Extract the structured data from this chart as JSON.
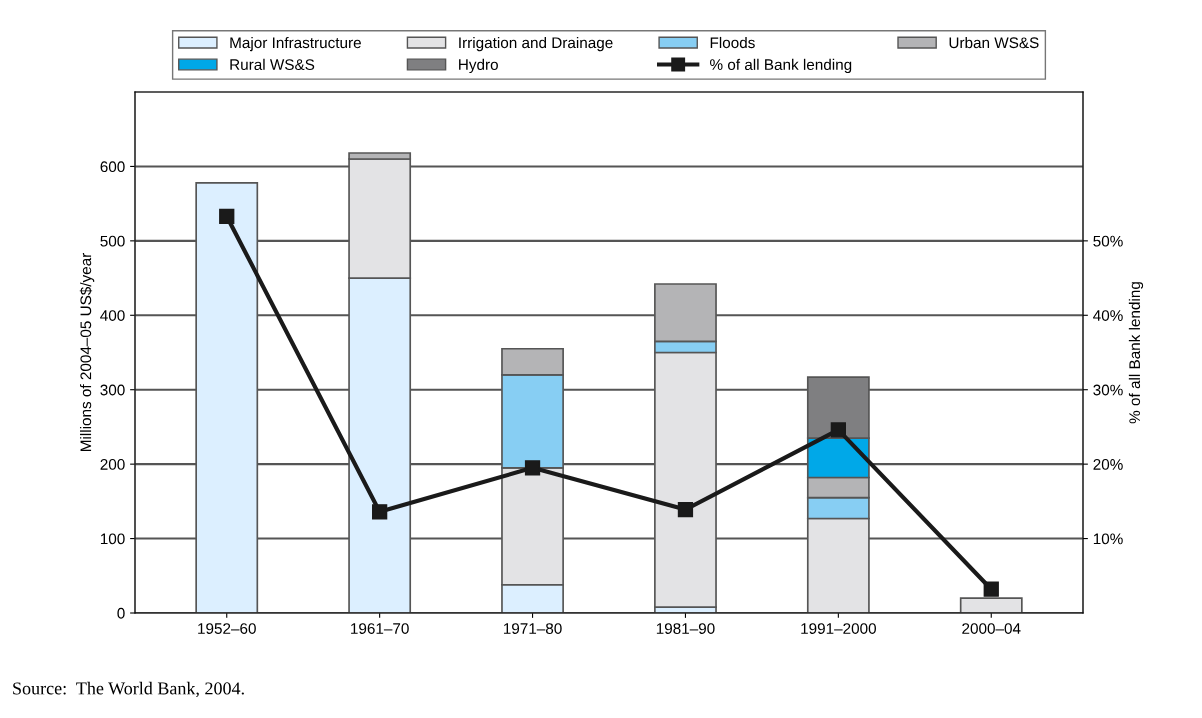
{
  "chart_data": {
    "type": "bar",
    "stacked": true,
    "categories": [
      "1952–60",
      "1961–70",
      "1971–80",
      "1981–90",
      "1991–2000",
      "2000–04"
    ],
    "series": [
      {
        "name": "Major Infrastructure",
        "color": "#dcefff",
        "values": [
          578,
          450,
          38,
          8,
          null,
          null
        ]
      },
      {
        "name": "Irrigation and Drainage",
        "color": "#e3e3e5",
        "values": [
          null,
          160,
          157,
          342,
          127,
          20
        ]
      },
      {
        "name": "Floods",
        "color": "#87cef3",
        "values": [
          null,
          null,
          125,
          15,
          28,
          null
        ]
      },
      {
        "name": "Urban WS&S",
        "color": "#b4b4b6",
        "values": [
          null,
          8,
          35,
          77,
          27,
          null
        ]
      },
      {
        "name": "Rural WS&S",
        "color": "#00a8e8",
        "values": [
          null,
          null,
          null,
          null,
          53,
          null
        ]
      },
      {
        "name": "Hydro",
        "color": "#7f7f81",
        "values": [
          null,
          null,
          null,
          null,
          82,
          null
        ]
      },
      {
        "name": "% of all Bank lending",
        "type": "line",
        "axis": "y2",
        "color": "#1a1a1a",
        "marker": "square",
        "line_style": "solid",
        "values": [
          53.3,
          13.6,
          19.5,
          13.9,
          24.6,
          3.2
        ]
      }
    ],
    "ylabel": "Millions of 2004–05 US$/year",
    "y2label": "% of all Bank lending",
    "ylim": [
      0,
      700
    ],
    "yticks": [
      0,
      100,
      200,
      300,
      400,
      500,
      600
    ],
    "y2lim": [
      0,
      70
    ],
    "y2ticks": [
      {
        "value": 10,
        "label": "10%"
      },
      {
        "value": 20,
        "label": "20%"
      },
      {
        "value": 30,
        "label": "30%"
      },
      {
        "value": 40,
        "label": "40%"
      },
      {
        "value": 50,
        "label": "50%"
      }
    ],
    "grid": "y",
    "legend": "top",
    "annotations": [
      "Source:  The World Bank, 2004."
    ]
  }
}
